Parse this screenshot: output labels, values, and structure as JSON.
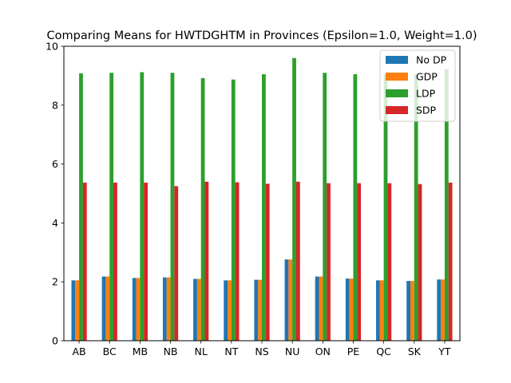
{
  "chart_data": {
    "type": "bar",
    "title": "Comparing Means for HWTDGHTM in Provinces (Epsilon=1.0, Weight=1.0)",
    "xlabel": "",
    "ylabel": "",
    "ylim": [
      0,
      10
    ],
    "yticks": [
      0,
      2,
      4,
      6,
      8,
      10
    ],
    "grid": false,
    "legend_position": "top-right",
    "categories": [
      "AB",
      "BC",
      "MB",
      "NB",
      "NL",
      "NT",
      "NS",
      "NU",
      "ON",
      "PE",
      "QC",
      "SK",
      "YT"
    ],
    "series": [
      {
        "name": "No DP",
        "color": "#1f77b4",
        "values": [
          2.05,
          2.18,
          2.13,
          2.15,
          2.1,
          2.05,
          2.07,
          2.76,
          2.18,
          2.11,
          2.05,
          2.03,
          2.08
        ]
      },
      {
        "name": "GDP",
        "color": "#ff7f0e",
        "values": [
          2.05,
          2.18,
          2.13,
          2.15,
          2.1,
          2.05,
          2.07,
          2.76,
          2.18,
          2.11,
          2.05,
          2.03,
          2.08
        ]
      },
      {
        "name": "LDP",
        "color": "#2ca02c",
        "values": [
          9.08,
          9.1,
          9.12,
          9.1,
          8.92,
          8.87,
          9.05,
          9.6,
          9.1,
          9.05,
          9.05,
          9.05,
          9.22
        ]
      },
      {
        "name": "SDP",
        "color": "#d62728",
        "values": [
          5.37,
          5.37,
          5.37,
          5.25,
          5.4,
          5.38,
          5.33,
          5.4,
          5.35,
          5.35,
          5.35,
          5.32,
          5.37
        ]
      }
    ]
  }
}
